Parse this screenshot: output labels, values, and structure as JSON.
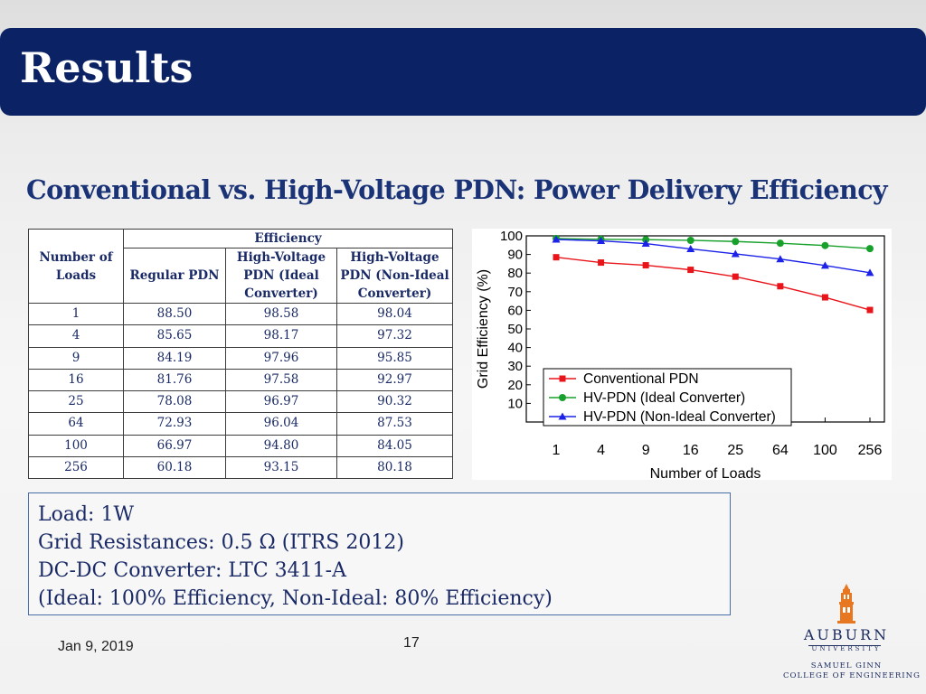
{
  "slide": {
    "title": "Results",
    "subtitle": "Conventional vs. High-Voltage PDN: Power Delivery Efficiency",
    "colors": {
      "title_bar": "#0b2265",
      "subtitle": "#1a3276",
      "text": "#1a2a66"
    }
  },
  "table": {
    "col_loads": "Number of Loads",
    "group_header": "Efficiency",
    "col_regular": "Regular PDN",
    "col_hv_ideal": "High-Voltage PDN (Ideal Converter)",
    "col_hv_nonideal": "High-Voltage PDN (Non-Ideal Converter)",
    "rows": [
      [
        "1",
        "88.50",
        "98.58",
        "98.04"
      ],
      [
        "4",
        "85.65",
        "98.17",
        "97.32"
      ],
      [
        "9",
        "84.19",
        "97.96",
        "95.85"
      ],
      [
        "16",
        "81.76",
        "97.58",
        "92.97"
      ],
      [
        "25",
        "78.08",
        "96.97",
        "90.32"
      ],
      [
        "64",
        "72.93",
        "96.04",
        "87.53"
      ],
      [
        "100",
        "66.97",
        "94.80",
        "84.05"
      ],
      [
        "256",
        "60.18",
        "93.15",
        "80.18"
      ]
    ]
  },
  "chart_data": {
    "type": "line",
    "title": "",
    "xlabel": "Number of Loads",
    "ylabel": "Grid Efficiency (%)",
    "categories": [
      "1",
      "4",
      "9",
      "16",
      "25",
      "64",
      "100",
      "256"
    ],
    "ylim": [
      0,
      100
    ],
    "yticks": [
      10,
      20,
      30,
      40,
      50,
      60,
      70,
      80,
      90,
      100
    ],
    "grid": false,
    "legend_position": "bottom-left",
    "series": [
      {
        "name": "Conventional PDN",
        "color": "#e8141a",
        "marker": "square",
        "values": [
          88.5,
          85.65,
          84.19,
          81.76,
          78.08,
          72.93,
          66.97,
          60.18
        ]
      },
      {
        "name": "HV-PDN (Ideal Converter)",
        "color": "#17a12b",
        "marker": "circle",
        "values": [
          98.58,
          98.17,
          97.96,
          97.58,
          96.97,
          96.04,
          94.8,
          93.15
        ]
      },
      {
        "name": "HV-PDN (Non-Ideal Converter)",
        "color": "#1c22e8",
        "marker": "triangle",
        "values": [
          98.04,
          97.32,
          95.85,
          92.97,
          90.32,
          87.53,
          84.05,
          80.18
        ]
      }
    ]
  },
  "info": {
    "lines": [
      "Load: 1W",
      "Grid Resistances: 0.5 Ω (ITRS 2012)",
      "DC-DC Converter: LTC 3411-A",
      "(Ideal: 100% Efficiency, Non-Ideal: 80% Efficiency)"
    ]
  },
  "footer": {
    "date": "Jan 9, 2019",
    "page": "17"
  },
  "logo": {
    "line1": "AUBURN",
    "line2": "UNIVERSITY",
    "line3": "SAMUEL GINN",
    "line4": "COLLEGE OF ENGINEERING",
    "icon": "tower-icon",
    "color": "#e87722"
  }
}
